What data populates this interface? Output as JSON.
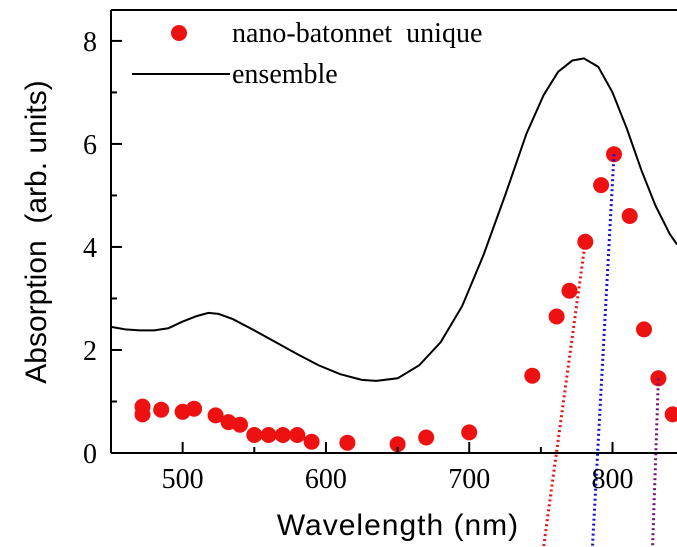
{
  "chart_data": {
    "type": "scatter",
    "title": "",
    "xlabel": "Wavelength (nm)",
    "ylabel": "Absorption  (arb. units)",
    "xlim": [
      450,
      845
    ],
    "ylim": [
      0,
      8.6
    ],
    "x_ticks": [
      {
        "value": 500,
        "label": "500"
      },
      {
        "value": 600,
        "label": "600"
      },
      {
        "value": 700,
        "label": "700"
      },
      {
        "value": 800,
        "label": "800"
      }
    ],
    "y_ticks": [
      {
        "value": 0,
        "label": "0"
      },
      {
        "value": 2,
        "label": "2"
      },
      {
        "value": 4,
        "label": "4"
      },
      {
        "value": 6,
        "label": "6"
      },
      {
        "value": 8,
        "label": "8"
      }
    ],
    "grid": false,
    "legend_position": "top-left",
    "series": [
      {
        "name": "nano-batonnet  unique",
        "kind": "scatter",
        "color": "#ee1111",
        "x": [
          472,
          472,
          485,
          500,
          508,
          523,
          532,
          540,
          550,
          560,
          570,
          580,
          590,
          615,
          650,
          670,
          700,
          744,
          761,
          770,
          781,
          792,
          801,
          812,
          822,
          832,
          842
        ],
        "y": [
          0.9,
          0.75,
          0.84,
          0.8,
          0.86,
          0.73,
          0.6,
          0.55,
          0.35,
          0.35,
          0.35,
          0.35,
          0.22,
          0.2,
          0.17,
          0.3,
          0.4,
          1.5,
          2.65,
          3.15,
          4.1,
          5.2,
          5.8,
          4.6,
          2.4,
          1.45,
          0.75
        ]
      },
      {
        "name": "ensemble",
        "kind": "line",
        "color": "#000000",
        "x": [
          450,
          460,
          470,
          480,
          490,
          500,
          510,
          518,
          525,
          535,
          550,
          565,
          580,
          595,
          610,
          625,
          635,
          650,
          665,
          680,
          695,
          710,
          725,
          740,
          752,
          762,
          772,
          780,
          790,
          800,
          810,
          820,
          830,
          840,
          845
        ],
        "y": [
          2.45,
          2.4,
          2.38,
          2.38,
          2.42,
          2.55,
          2.66,
          2.72,
          2.7,
          2.6,
          2.38,
          2.15,
          1.92,
          1.7,
          1.53,
          1.42,
          1.4,
          1.45,
          1.7,
          2.15,
          2.85,
          3.85,
          5.0,
          6.2,
          6.95,
          7.4,
          7.62,
          7.66,
          7.5,
          7.0,
          6.3,
          5.5,
          4.8,
          4.25,
          4.05
        ]
      }
    ],
    "annotations": [
      {
        "kind": "dotted-line",
        "color": "#ee1111",
        "from": [
          781,
          4.1
        ],
        "to": [
          752,
          -2.1
        ]
      },
      {
        "kind": "dotted-line",
        "color": "#1111dd",
        "from": [
          801,
          5.8
        ],
        "to": [
          786,
          -2.1
        ]
      },
      {
        "kind": "dotted-line",
        "color": "#771177",
        "from": [
          832,
          1.45
        ],
        "to": [
          828,
          -2.1
        ]
      }
    ]
  }
}
